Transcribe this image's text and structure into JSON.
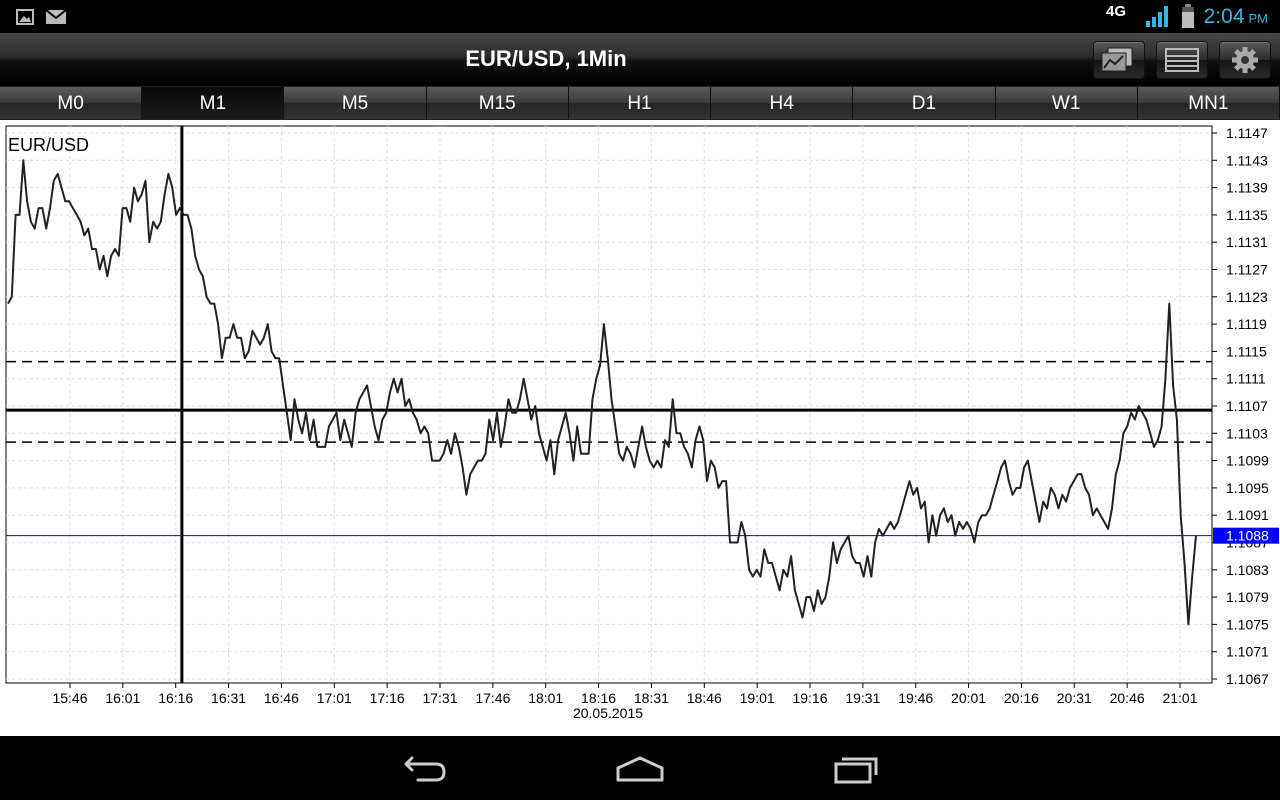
{
  "status_bar": {
    "time": "2:04",
    "ampm": "PM",
    "network": "4G",
    "icons": [
      "gallery-notification-icon",
      "mail-notification-icon",
      "network-4g-icon",
      "signal-icon",
      "battery-icon"
    ]
  },
  "header": {
    "title": "EUR/USD, 1Min",
    "buttons": [
      "chart-type-icon",
      "order-list-icon",
      "settings-gear-icon"
    ]
  },
  "timeframe_tabs": [
    {
      "label": "M0",
      "active": false
    },
    {
      "label": "M1",
      "active": true
    },
    {
      "label": "M5",
      "active": false
    },
    {
      "label": "M15",
      "active": false
    },
    {
      "label": "H1",
      "active": false
    },
    {
      "label": "H4",
      "active": false
    },
    {
      "label": "D1",
      "active": false
    },
    {
      "label": "W1",
      "active": false
    },
    {
      "label": "MN1",
      "active": false
    }
  ],
  "colors": {
    "accent": "#33b5e5",
    "price_line": "#0000ff",
    "price_label_bg": "#0000ff",
    "series": "#222222"
  },
  "chart_data": {
    "type": "line",
    "symbol_label": "EUR/USD",
    "date_label": "20.05.2015",
    "x_ticks": [
      "15:46",
      "16:01",
      "16:16",
      "16:31",
      "16:46",
      "17:01",
      "17:16",
      "17:31",
      "17:46",
      "18:01",
      "18:16",
      "18:31",
      "18:46",
      "19:01",
      "19:16",
      "19:31",
      "19:46",
      "20:01",
      "20:16",
      "20:31",
      "20:46",
      "21:01"
    ],
    "y_ticks": [
      "1.1147",
      "1.1143",
      "1.1139",
      "1.1135",
      "1.1131",
      "1.1127",
      "1.1123",
      "1.1119",
      "1.1115",
      "1.1111",
      "1.1107",
      "1.1103",
      "1.1099",
      "1.1095",
      "1.1091",
      "1.1087",
      "1.1083",
      "1.1079",
      "1.1075",
      "1.1071",
      "1.1067"
    ],
    "ylim": [
      1.1067,
      1.1147
    ],
    "current_price": "1.1088",
    "current_price_value": 1.1088,
    "horizontal_levels": [
      {
        "value": 1.11135,
        "style": "dashed"
      },
      {
        "value": 1.11064,
        "style": "solid"
      },
      {
        "value": 1.11017,
        "style": "dashed"
      }
    ],
    "vertical_marker_index": 45,
    "grid": true,
    "series": [
      {
        "values": [
          1.1122,
          1.1123,
          1.1135,
          1.1135,
          1.1143,
          1.1137,
          1.1134,
          1.1133,
          1.1136,
          1.1136,
          1.1133,
          1.1136,
          1.114,
          1.1141,
          1.1139,
          1.1137,
          1.1137,
          1.1136,
          1.1135,
          1.1134,
          1.1132,
          1.1133,
          1.113,
          1.113,
          1.1127,
          1.1129,
          1.1126,
          1.1129,
          1.113,
          1.1129,
          1.1136,
          1.1136,
          1.1134,
          1.1139,
          1.1137,
          1.1138,
          1.114,
          1.1131,
          1.1134,
          1.1133,
          1.1134,
          1.1138,
          1.1141,
          1.1139,
          1.1135,
          1.1136,
          1.1135,
          1.1135,
          1.1133,
          1.1129,
          1.1127,
          1.1126,
          1.1123,
          1.1122,
          1.1122,
          1.1119,
          1.1114,
          1.1117,
          1.1117,
          1.1119,
          1.1117,
          1.1117,
          1.1114,
          1.1115,
          1.1118,
          1.1117,
          1.1116,
          1.1117,
          1.1119,
          1.1115,
          1.1114,
          1.1114,
          1.111,
          1.1106,
          1.1102,
          1.1108,
          1.1105,
          1.1103,
          1.1106,
          1.1102,
          1.1105,
          1.1101,
          1.1101,
          1.1101,
          1.1104,
          1.1105,
          1.1106,
          1.1102,
          1.1105,
          1.1103,
          1.1101,
          1.1106,
          1.1108,
          1.1109,
          1.111,
          1.1107,
          1.1104,
          1.1102,
          1.1105,
          1.1106,
          1.1109,
          1.1111,
          1.1109,
          1.1111,
          1.1107,
          1.1108,
          1.1106,
          1.1105,
          1.1103,
          1.1104,
          1.1103,
          1.1099,
          1.1099,
          1.1099,
          1.11,
          1.1102,
          1.11,
          1.1103,
          1.1101,
          1.1098,
          1.1094,
          1.1097,
          1.1098,
          1.1099,
          1.1099,
          1.11,
          1.1105,
          1.1102,
          1.1106,
          1.1101,
          1.1104,
          1.1108,
          1.1106,
          1.1106,
          1.1108,
          1.1111,
          1.1108,
          1.1105,
          1.1107,
          1.1103,
          1.1101,
          1.1099,
          1.1102,
          1.1097,
          1.1102,
          1.1104,
          1.1106,
          1.1103,
          1.1099,
          1.1104,
          1.11,
          1.11,
          1.11,
          1.1108,
          1.1111,
          1.1113,
          1.1119,
          1.1114,
          1.1108,
          1.1104,
          1.11,
          1.1099,
          1.1101,
          1.11,
          1.1098,
          1.1101,
          1.1104,
          1.1101,
          1.1099,
          1.1098,
          1.1099,
          1.1098,
          1.1102,
          1.1101,
          1.1108,
          1.1103,
          1.1103,
          1.1101,
          1.11,
          1.1098,
          1.1102,
          1.1104,
          1.1102,
          1.1096,
          1.1099,
          1.1098,
          1.1095,
          1.1096,
          1.1096,
          1.1087,
          1.1087,
          1.1087,
          1.109,
          1.1088,
          1.1083,
          1.1082,
          1.1083,
          1.1082,
          1.1086,
          1.1084,
          1.1084,
          1.1082,
          1.108,
          1.1083,
          1.1082,
          1.1085,
          1.108,
          1.1078,
          1.1076,
          1.1079,
          1.1079,
          1.1077,
          1.108,
          1.1078,
          1.1079,
          1.1082,
          1.1087,
          1.1084,
          1.1086,
          1.1087,
          1.1088,
          1.1085,
          1.1084,
          1.1084,
          1.1082,
          1.1085,
          1.1082,
          1.1087,
          1.1089,
          1.1088,
          1.1089,
          1.109,
          1.1089,
          1.109,
          1.1092,
          1.1094,
          1.1096,
          1.1094,
          1.1095,
          1.1092,
          1.1093,
          1.1087,
          1.1091,
          1.1088,
          1.1091,
          1.1092,
          1.109,
          1.1091,
          1.1088,
          1.109,
          1.1089,
          1.109,
          1.1089,
          1.1087,
          1.109,
          1.1091,
          1.1091,
          1.1092,
          1.1094,
          1.1096,
          1.1098,
          1.1099,
          1.1096,
          1.1094,
          1.1095,
          1.1095,
          1.1098,
          1.1099,
          1.1096,
          1.1093,
          1.109,
          1.1093,
          1.1092,
          1.1095,
          1.1094,
          1.1092,
          1.1094,
          1.1093,
          1.1095,
          1.1096,
          1.1097,
          1.1097,
          1.1095,
          1.1094,
          1.1091,
          1.1092,
          1.1091,
          1.109,
          1.1089,
          1.1092,
          1.1097,
          1.1099,
          1.1103,
          1.1104,
          1.1106,
          1.1105,
          1.1107,
          1.1106,
          1.1105,
          1.1103,
          1.1101,
          1.1102,
          1.1104,
          1.1111,
          1.1122,
          1.111,
          1.1105,
          1.1091,
          1.1084,
          1.1075,
          1.1082,
          1.1088
        ],
        "color": "#222222"
      }
    ]
  }
}
